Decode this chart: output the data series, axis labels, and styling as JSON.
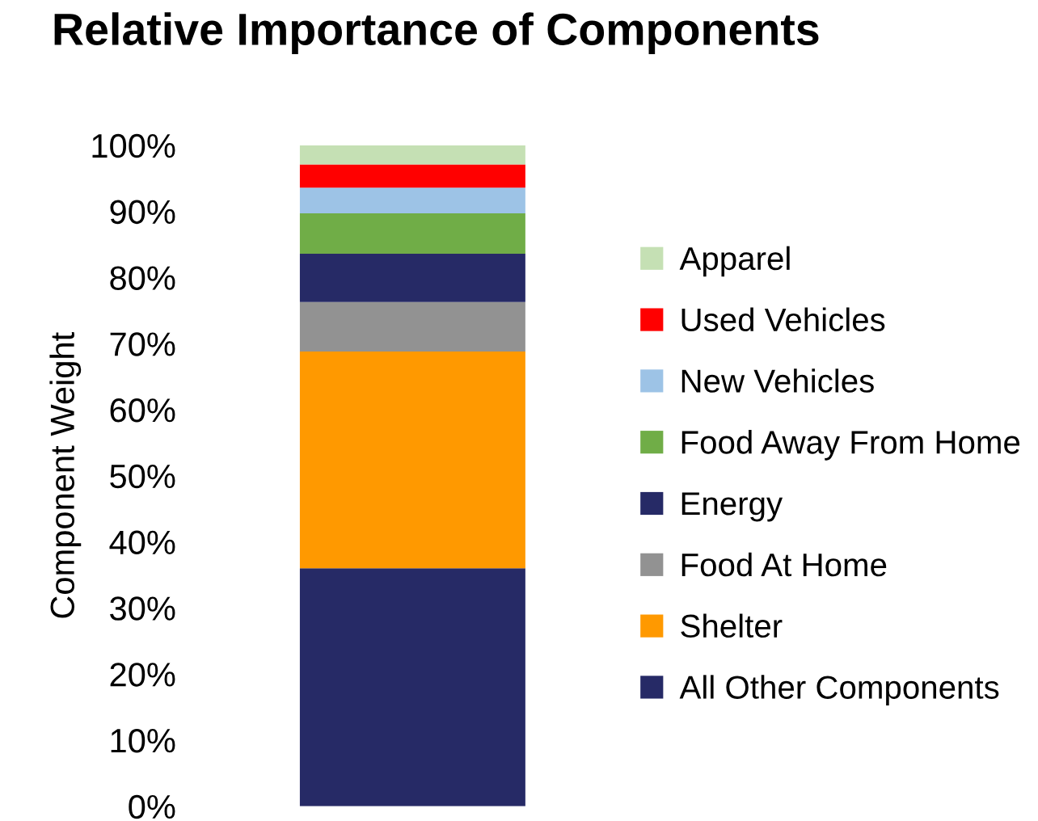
{
  "chart_data": {
    "type": "bar",
    "title": "Relative Importance of Components",
    "ylabel": "Component Weight",
    "categories": [
      null
    ],
    "stacked": true,
    "legend": "right",
    "grid": false,
    "ylim": [
      0,
      100
    ],
    "yticks": [
      {
        "value": 0,
        "label": "0%"
      },
      {
        "value": 10,
        "label": "10%"
      },
      {
        "value": 20,
        "label": "20%"
      },
      {
        "value": 30,
        "label": "30%"
      },
      {
        "value": 40,
        "label": "40%"
      },
      {
        "value": 50,
        "label": "50%"
      },
      {
        "value": 60,
        "label": "60%"
      },
      {
        "value": 70,
        "label": "70%"
      },
      {
        "value": 80,
        "label": "80%"
      },
      {
        "value": 90,
        "label": "90%"
      },
      {
        "value": 100,
        "label": "100%"
      }
    ],
    "series": [
      {
        "name": "All Other Components",
        "color": "#262a66",
        "values": [
          36.0
        ]
      },
      {
        "name": "Shelter",
        "color": "#ff9900",
        "values": [
          32.8
        ]
      },
      {
        "name": "Food At Home",
        "color": "#929292",
        "values": [
          7.5
        ]
      },
      {
        "name": "Energy",
        "color": "#262a66",
        "values": [
          7.3
        ]
      },
      {
        "name": "Food Away From Home",
        "color": "#70ad47",
        "values": [
          6.1
        ]
      },
      {
        "name": "New Vehicles",
        "color": "#9dc3e6",
        "values": [
          3.9
        ]
      },
      {
        "name": "Used Vehicles",
        "color": "#ff0000",
        "values": [
          3.5
        ]
      },
      {
        "name": "Apparel",
        "color": "#c5e0b4",
        "values": [
          2.9
        ]
      }
    ]
  }
}
